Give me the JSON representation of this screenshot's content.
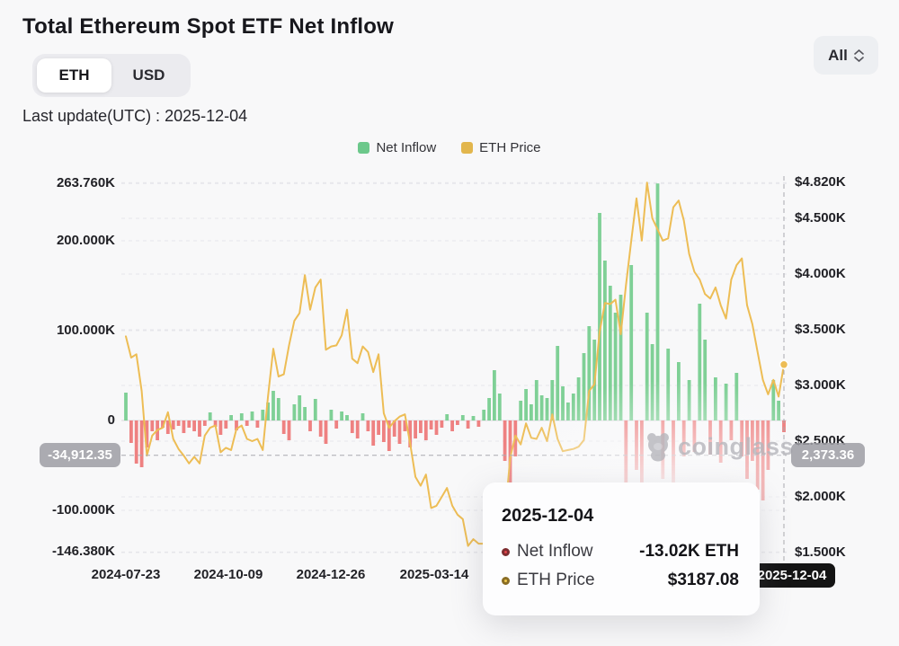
{
  "header": {
    "title": "Total Ethereum Spot ETF Net Inflow",
    "currency_toggle": {
      "options": [
        "ETH",
        "USD"
      ],
      "active": "ETH"
    },
    "range_selector": {
      "value": "All"
    },
    "last_update": "Last update(UTC) : 2025-12-04"
  },
  "legend": {
    "items": [
      {
        "label": "Net Inflow",
        "color": "#6cc88b"
      },
      {
        "label": "ETH Price",
        "color": "#e2b64d"
      }
    ]
  },
  "watermark": {
    "text": "coinglass"
  },
  "crosshair": {
    "left_badge": "-34,912.35",
    "right_badge": "2,373.36",
    "date_badge": "2025-12-04",
    "y_right_value": 2373.36,
    "x_index": 125,
    "dot_price": 3187.08
  },
  "tooltip": {
    "title": "2025-12-04",
    "rows": [
      {
        "label": "Net Inflow",
        "value": "-13.02K ETH",
        "marker_fill": "#e2454b",
        "marker_ring": "#7e2d30"
      },
      {
        "label": "ETH Price",
        "value": "$3187.08",
        "marker_fill": "#eec84e",
        "marker_ring": "#8a6d24"
      }
    ]
  },
  "chart_data": {
    "type": "bar",
    "x": {
      "start_date": "2024-07-23",
      "end_date": "2025-12-04",
      "points": 126,
      "interval_days": 4
    },
    "ylim_left": [
      -146.38,
      263.76
    ],
    "ylim_right": [
      1500,
      4820
    ],
    "grid": "dashed-horizontal",
    "legend_position": "top-center",
    "axes": {
      "left": {
        "unit": "K ETH",
        "ticks": [
          {
            "value": 263.76,
            "label": "263.760K"
          },
          {
            "value": 200,
            "label": "200.000K"
          },
          {
            "value": 100,
            "label": "100.000K"
          },
          {
            "value": 0,
            "label": "0"
          },
          {
            "value": -100,
            "label": "-100.000K"
          },
          {
            "value": -146.38,
            "label": "-146.380K"
          }
        ]
      },
      "right": {
        "unit": "USD",
        "ticks": [
          {
            "value": 4820,
            "label": "$4.820K"
          },
          {
            "value": 4500,
            "label": "$4.500K"
          },
          {
            "value": 4000,
            "label": "$4.000K"
          },
          {
            "value": 3500,
            "label": "$3.500K"
          },
          {
            "value": 3000,
            "label": "$3.000K"
          },
          {
            "value": 2500,
            "label": "$2.500K"
          },
          {
            "value": 2000,
            "label": "$2.000K"
          },
          {
            "value": 1500,
            "label": "$1.500K"
          }
        ]
      },
      "x_ticks": [
        {
          "pos": 0,
          "label": "2024-07-23"
        },
        {
          "pos": 19.5,
          "label": "2024-10-09"
        },
        {
          "pos": 39,
          "label": "2024-12-26"
        },
        {
          "pos": 58.5,
          "label": "2025-03-14"
        }
      ]
    },
    "series": [
      {
        "name": "Net Inflow",
        "type": "bar",
        "unit": "K ETH",
        "color_pos": "#7fd096",
        "color_neg": "#ee8181",
        "values": [
          31,
          -25,
          -48,
          -52,
          -30,
          -12,
          -22,
          -8,
          -15,
          -10,
          -6,
          -14,
          -8,
          -12,
          -18,
          -6,
          9,
          -7,
          -16,
          -9,
          6,
          -11,
          8,
          -6,
          10,
          -8,
          12,
          20,
          33,
          25,
          -15,
          -22,
          18,
          28,
          15,
          -12,
          24,
          -18,
          -26,
          12,
          -9,
          10,
          6,
          -14,
          -20,
          8,
          -12,
          -28,
          -16,
          -24,
          -34,
          -18,
          -26,
          -12,
          -30,
          -20,
          -14,
          -22,
          -10,
          -16,
          -8,
          7,
          -12,
          -5,
          6,
          -9,
          5,
          -7,
          12,
          25,
          56,
          30,
          -45,
          -146.38,
          -40,
          22,
          35,
          18,
          45,
          28,
          25,
          45,
          83,
          38,
          20,
          30,
          48,
          75,
          105,
          90,
          231,
          178,
          150,
          120,
          140,
          -70,
          173,
          -55,
          -90,
          120,
          85,
          263.76,
          -65,
          80,
          -75,
          65,
          -40,
          45,
          -35,
          130,
          90,
          -38,
          48,
          -47,
          41,
          -22,
          53,
          -40,
          -65,
          -45,
          -77,
          -89,
          -55,
          45,
          22,
          -13.02
        ]
      },
      {
        "name": "ETH Price",
        "type": "line",
        "unit": "USD",
        "color": "#edbd55",
        "values": [
          3440,
          3250,
          3280,
          2950,
          2370,
          2550,
          2600,
          2620,
          2760,
          2520,
          2430,
          2370,
          2300,
          2360,
          2300,
          2550,
          2620,
          2640,
          2400,
          2440,
          2420,
          2610,
          2640,
          2520,
          2500,
          2520,
          2420,
          2900,
          3330,
          3080,
          3100,
          3360,
          3580,
          3650,
          3990,
          3680,
          3880,
          3950,
          3320,
          3350,
          3360,
          3450,
          3680,
          3240,
          3200,
          3350,
          3300,
          3120,
          3280,
          2750,
          2620,
          2680,
          2720,
          2740,
          2480,
          2180,
          2100,
          2200,
          1900,
          1920,
          2000,
          2080,
          1920,
          1840,
          1800,
          1560,
          1620,
          1580,
          1580,
          1780,
          1800,
          1840,
          1820,
          2350,
          2550,
          2470,
          2660,
          2530,
          2520,
          2620,
          2500,
          2740,
          2520,
          2410,
          2420,
          2430,
          2450,
          2510,
          2950,
          3010,
          3480,
          3740,
          3730,
          3770,
          3460,
          3900,
          4300,
          4680,
          4300,
          4820,
          4500,
          4400,
          4300,
          4320,
          4600,
          4660,
          4480,
          4180,
          4020,
          3950,
          3820,
          3780,
          3880,
          3720,
          3600,
          3950,
          4080,
          4140,
          3720,
          3550,
          3300,
          3050,
          2920,
          3050,
          2900,
          3187.08
        ]
      }
    ]
  }
}
